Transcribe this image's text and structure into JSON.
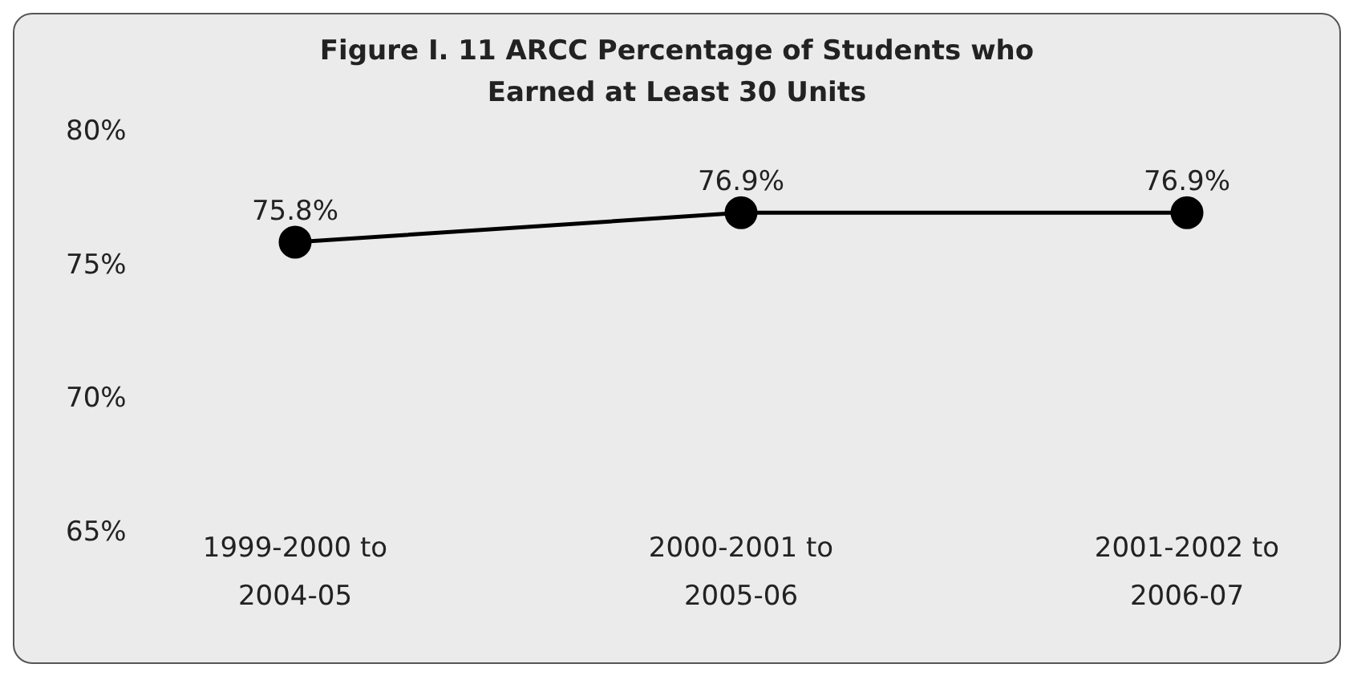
{
  "chart_data": {
    "type": "line",
    "title": "Figure I. 11   ARCC Percentage of Students who Earned at Least 30 Units",
    "categories": [
      "1999-2000 to 2004-05",
      "2000-2001 to 2005-06",
      "2001-2002 to 2006-07"
    ],
    "series": [
      {
        "color": "#000000",
        "values": [
          75.8,
          76.9,
          76.9
        ]
      }
    ],
    "ylim": [
      65,
      80
    ],
    "yticks": [
      {
        "value": 65,
        "label": "65%"
      },
      {
        "value": 70,
        "label": "70%"
      },
      {
        "value": 75,
        "label": "75%"
      },
      {
        "value": 80,
        "label": "80%"
      }
    ],
    "value_labels": [
      "75.8%",
      "76.9%",
      "76.9%"
    ],
    "marker": "circle",
    "line_style": "solid",
    "grid": false,
    "legend": false
  }
}
